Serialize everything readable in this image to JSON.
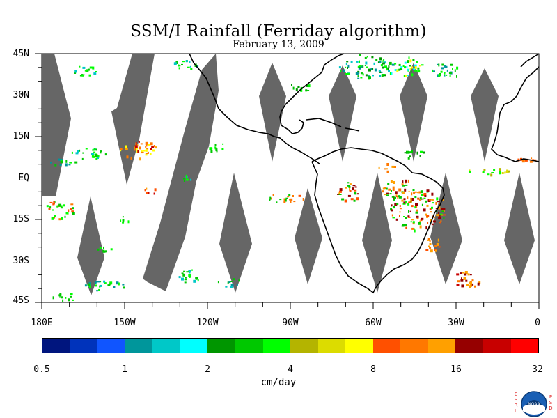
{
  "title": "SSM/I Rainfall (Ferriday algorithm)",
  "subtitle": "February 13, 2009",
  "lat_labels": [
    "45N",
    "30N",
    "15N",
    "EQ",
    "15S",
    "30S",
    "45S"
  ],
  "lon_labels": [
    "180E",
    "150W",
    "120W",
    "90W",
    "60W",
    "30W",
    "0"
  ],
  "colorbar": {
    "colors": [
      "#00157e",
      "#0033bb",
      "#1055ff",
      "#00969b",
      "#00c8c8",
      "#00ffff",
      "#009600",
      "#00c800",
      "#00ff00",
      "#b4b400",
      "#dcdc00",
      "#ffff00",
      "#ff5000",
      "#ff7800",
      "#ffa000",
      "#960000",
      "#c80000",
      "#ff0000"
    ],
    "tick_labels": [
      "0.5",
      "1",
      "2",
      "4",
      "8",
      "16",
      "32"
    ],
    "unit": "cm/day"
  },
  "map_colors": {
    "missing_swath": "#666666",
    "coastline": "#000000"
  },
  "logo": {
    "left_letters": "ESRL",
    "right_letters": "PSD",
    "name": "NOAA"
  }
}
